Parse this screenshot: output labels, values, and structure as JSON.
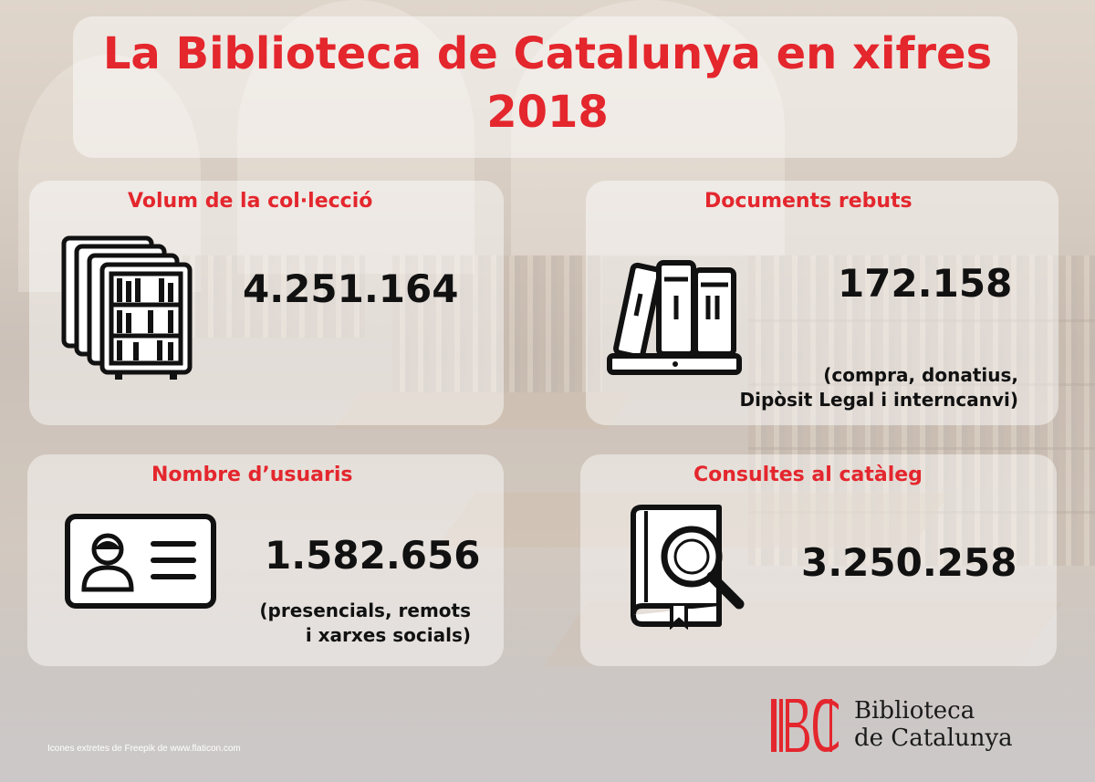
{
  "title": {
    "line1": "La Biblioteca de Catalunya en xifres",
    "line2": "2018"
  },
  "stats": {
    "collection": {
      "heading": "Volum de la col·lecció",
      "value": "4.251.164",
      "icon": "bookshelves-icon"
    },
    "documents": {
      "heading": "Documents rebuts",
      "value": "172.158",
      "note_line1": "(compra, donatius,",
      "note_line2": "Dipòsit Legal i interncanvi)",
      "icon": "books-icon"
    },
    "users": {
      "heading": "Nombre d’usuaris",
      "value": "1.582.656",
      "note_line1": "(presencials, remots",
      "note_line2": "i xarxes socials)",
      "icon": "user-card-icon"
    },
    "catalog": {
      "heading": "Consultes al catàleg",
      "value": "3.250.258",
      "icon": "book-search-icon"
    }
  },
  "footer": {
    "credit": "Icones extretes de Freepik de www.flaticon.com",
    "logo_line1": "Biblioteca",
    "logo_line2": "de Catalunya"
  },
  "colors": {
    "accent": "#e4262d",
    "text": "#111111"
  }
}
